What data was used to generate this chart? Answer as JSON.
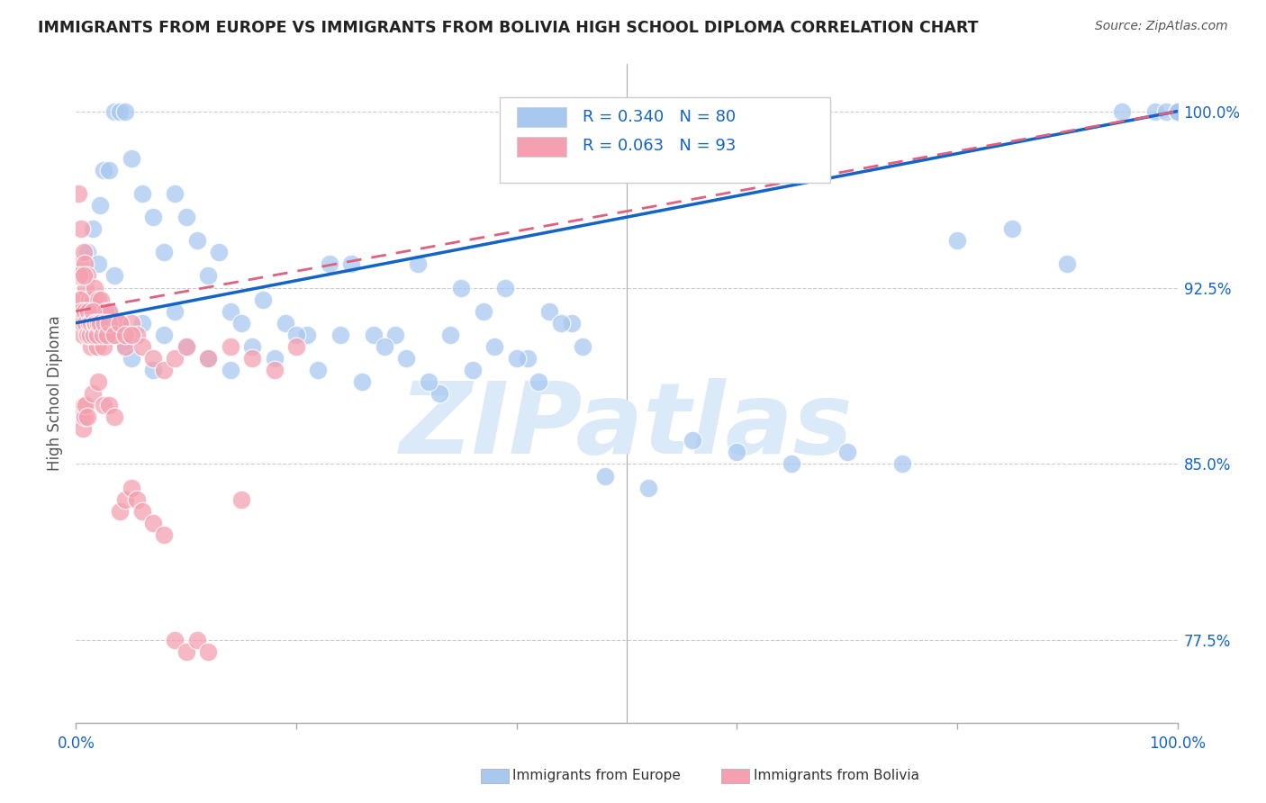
{
  "title": "IMMIGRANTS FROM EUROPE VS IMMIGRANTS FROM BOLIVIA HIGH SCHOOL DIPLOMA CORRELATION CHART",
  "source": "Source: ZipAtlas.com",
  "ylabel": "High School Diploma",
  "ylabel_ticks": [
    77.5,
    85.0,
    92.5,
    100.0
  ],
  "ylabel_tick_labels": [
    "77.5%",
    "85.0%",
    "92.5%",
    "100.0%"
  ],
  "xlim": [
    0.0,
    100.0
  ],
  "ylim": [
    74.0,
    102.0
  ],
  "europe_R": 0.34,
  "europe_N": 80,
  "bolivia_R": 0.063,
  "bolivia_N": 93,
  "europe_color": "#a8c8f0",
  "bolivia_color": "#f4a0b0",
  "europe_line_color": "#1464c8",
  "bolivia_line_color": "#e06080",
  "watermark_color": "#daeaf8",
  "legend_europe_label": "Immigrants from Europe",
  "legend_bolivia_label": "Immigrants from Bolivia",
  "europe_line_x0": 0.0,
  "europe_line_y0": 91.0,
  "europe_line_x1": 100.0,
  "europe_line_y1": 100.0,
  "bolivia_line_x0": 0.0,
  "bolivia_line_y0": 91.5,
  "bolivia_line_x1": 100.0,
  "bolivia_line_y1": 100.0,
  "europe_x": [
    1.0,
    1.5,
    2.0,
    2.2,
    2.5,
    3.0,
    3.5,
    4.0,
    4.5,
    5.0,
    6.0,
    7.0,
    8.0,
    9.0,
    10.0,
    11.0,
    12.0,
    13.0,
    14.0,
    15.0,
    17.0,
    19.0,
    21.0,
    23.0,
    25.0,
    27.0,
    29.0,
    31.0,
    33.0,
    35.0,
    37.0,
    39.0,
    41.0,
    43.0,
    45.0,
    48.0,
    52.0,
    56.0,
    60.0,
    65.0,
    70.0,
    75.0,
    80.0,
    85.0,
    90.0,
    95.0,
    98.0,
    99.0,
    100.0,
    100.0,
    100.0,
    3.0,
    3.2,
    3.5,
    4.0,
    4.5,
    5.0,
    6.0,
    7.0,
    8.0,
    9.0,
    10.0,
    12.0,
    14.0,
    16.0,
    18.0,
    20.0,
    22.0,
    24.0,
    26.0,
    28.0,
    30.0,
    32.0,
    34.0,
    36.0,
    38.0,
    40.0,
    42.0,
    44.0,
    46.0
  ],
  "europe_y": [
    94.0,
    95.0,
    93.5,
    96.0,
    97.5,
    97.5,
    100.0,
    100.0,
    100.0,
    98.0,
    96.5,
    95.5,
    94.0,
    96.5,
    95.5,
    94.5,
    93.0,
    94.0,
    91.5,
    91.0,
    92.0,
    91.0,
    90.5,
    93.5,
    93.5,
    90.5,
    90.5,
    93.5,
    88.0,
    92.5,
    91.5,
    92.5,
    89.5,
    91.5,
    91.0,
    84.5,
    84.0,
    86.0,
    85.5,
    85.0,
    85.5,
    85.0,
    94.5,
    95.0,
    93.5,
    100.0,
    100.0,
    100.0,
    100.0,
    100.0,
    100.0,
    91.5,
    90.5,
    93.0,
    91.0,
    90.0,
    89.5,
    91.0,
    89.0,
    90.5,
    91.5,
    90.0,
    89.5,
    89.0,
    90.0,
    89.5,
    90.5,
    89.0,
    90.5,
    88.5,
    90.0,
    89.5,
    88.5,
    90.5,
    89.0,
    90.0,
    89.5,
    88.5,
    91.0,
    90.0
  ],
  "bolivia_x": [
    0.2,
    0.3,
    0.4,
    0.5,
    0.5,
    0.6,
    0.7,
    0.8,
    0.8,
    0.9,
    1.0,
    1.0,
    1.1,
    1.2,
    1.3,
    1.4,
    1.5,
    1.6,
    1.7,
    1.8,
    1.9,
    2.0,
    2.1,
    2.2,
    2.3,
    2.5,
    2.7,
    3.0,
    3.5,
    4.0,
    4.5,
    5.0,
    5.5,
    6.0,
    7.0,
    8.0,
    9.0,
    10.0,
    12.0,
    14.0,
    16.0,
    18.0,
    20.0,
    0.3,
    0.4,
    0.5,
    0.6,
    0.7,
    0.8,
    0.9,
    1.0,
    1.1,
    1.2,
    1.3,
    1.4,
    1.5,
    1.6,
    1.7,
    1.8,
    1.9,
    2.0,
    2.2,
    2.4,
    2.6,
    2.8,
    3.0,
    3.5,
    4.0,
    4.5,
    5.0,
    0.5,
    0.6,
    0.7,
    0.8,
    0.9,
    1.0,
    1.5,
    2.0,
    2.5,
    3.0,
    3.5,
    4.0,
    4.5,
    5.0,
    5.5,
    6.0,
    7.0,
    8.0,
    9.0,
    10.0,
    11.0,
    12.0,
    15.0
  ],
  "bolivia_y": [
    96.5,
    91.0,
    93.5,
    95.0,
    92.0,
    90.5,
    94.0,
    91.0,
    93.5,
    92.5,
    91.0,
    93.0,
    90.5,
    92.0,
    91.5,
    90.0,
    92.0,
    90.5,
    92.5,
    91.5,
    90.0,
    92.0,
    91.0,
    90.5,
    92.0,
    90.0,
    91.5,
    91.5,
    90.5,
    91.0,
    90.0,
    91.0,
    90.5,
    90.0,
    89.5,
    89.0,
    89.5,
    90.0,
    89.5,
    90.0,
    89.5,
    89.0,
    90.0,
    93.0,
    92.0,
    91.5,
    91.0,
    93.0,
    91.5,
    91.0,
    90.5,
    91.5,
    91.0,
    90.5,
    91.0,
    91.5,
    90.5,
    91.0,
    91.0,
    90.5,
    91.0,
    91.0,
    90.5,
    91.0,
    90.5,
    91.0,
    90.5,
    91.0,
    90.5,
    90.5,
    87.0,
    86.5,
    87.5,
    87.0,
    87.5,
    87.0,
    88.0,
    88.5,
    87.5,
    87.5,
    87.0,
    83.0,
    83.5,
    84.0,
    83.5,
    83.0,
    82.5,
    82.0,
    77.5,
    77.0,
    77.5,
    77.0,
    83.5
  ]
}
